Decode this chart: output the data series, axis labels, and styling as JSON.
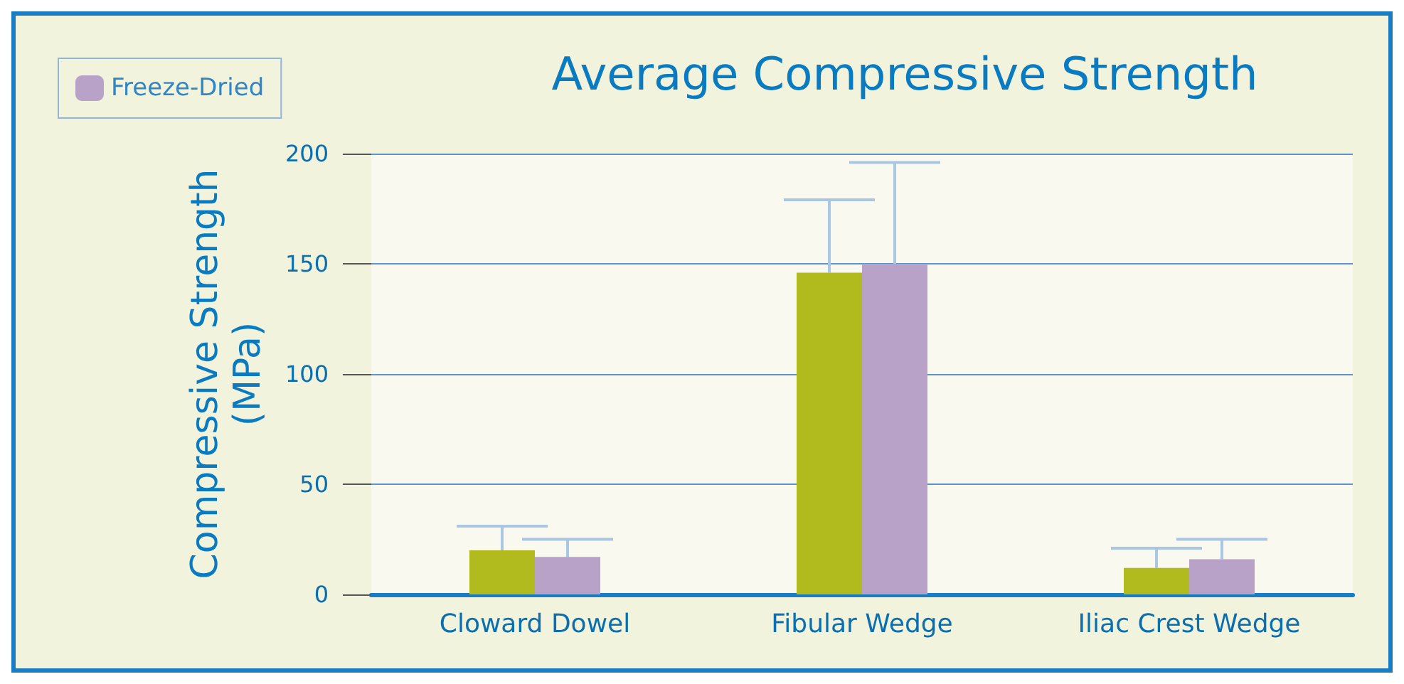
{
  "chart_data": {
    "type": "bar",
    "title": "Average Compressive Strength",
    "ylabel": "Compressive Strength\n(MPa)",
    "categories": [
      "Cloward Dowel",
      "Fibular Wedge",
      "Iliac Crest Wedge"
    ],
    "series": [
      {
        "color": "#b2bb1e",
        "values": [
          20,
          146,
          12
        ],
        "errors": [
          [
            20,
            31
          ],
          [
            146,
            179
          ],
          [
            12,
            21
          ]
        ]
      },
      {
        "name": "Freeze-Dried",
        "color": "#b8a2c8",
        "values": [
          17,
          150,
          16
        ],
        "errors": [
          [
            17,
            25
          ],
          [
            150,
            196
          ],
          [
            16,
            25
          ]
        ]
      }
    ],
    "ylim": [
      0,
      200
    ],
    "yticks": [
      0,
      50,
      100,
      150,
      200
    ],
    "grid": "y",
    "legend": "top left"
  }
}
